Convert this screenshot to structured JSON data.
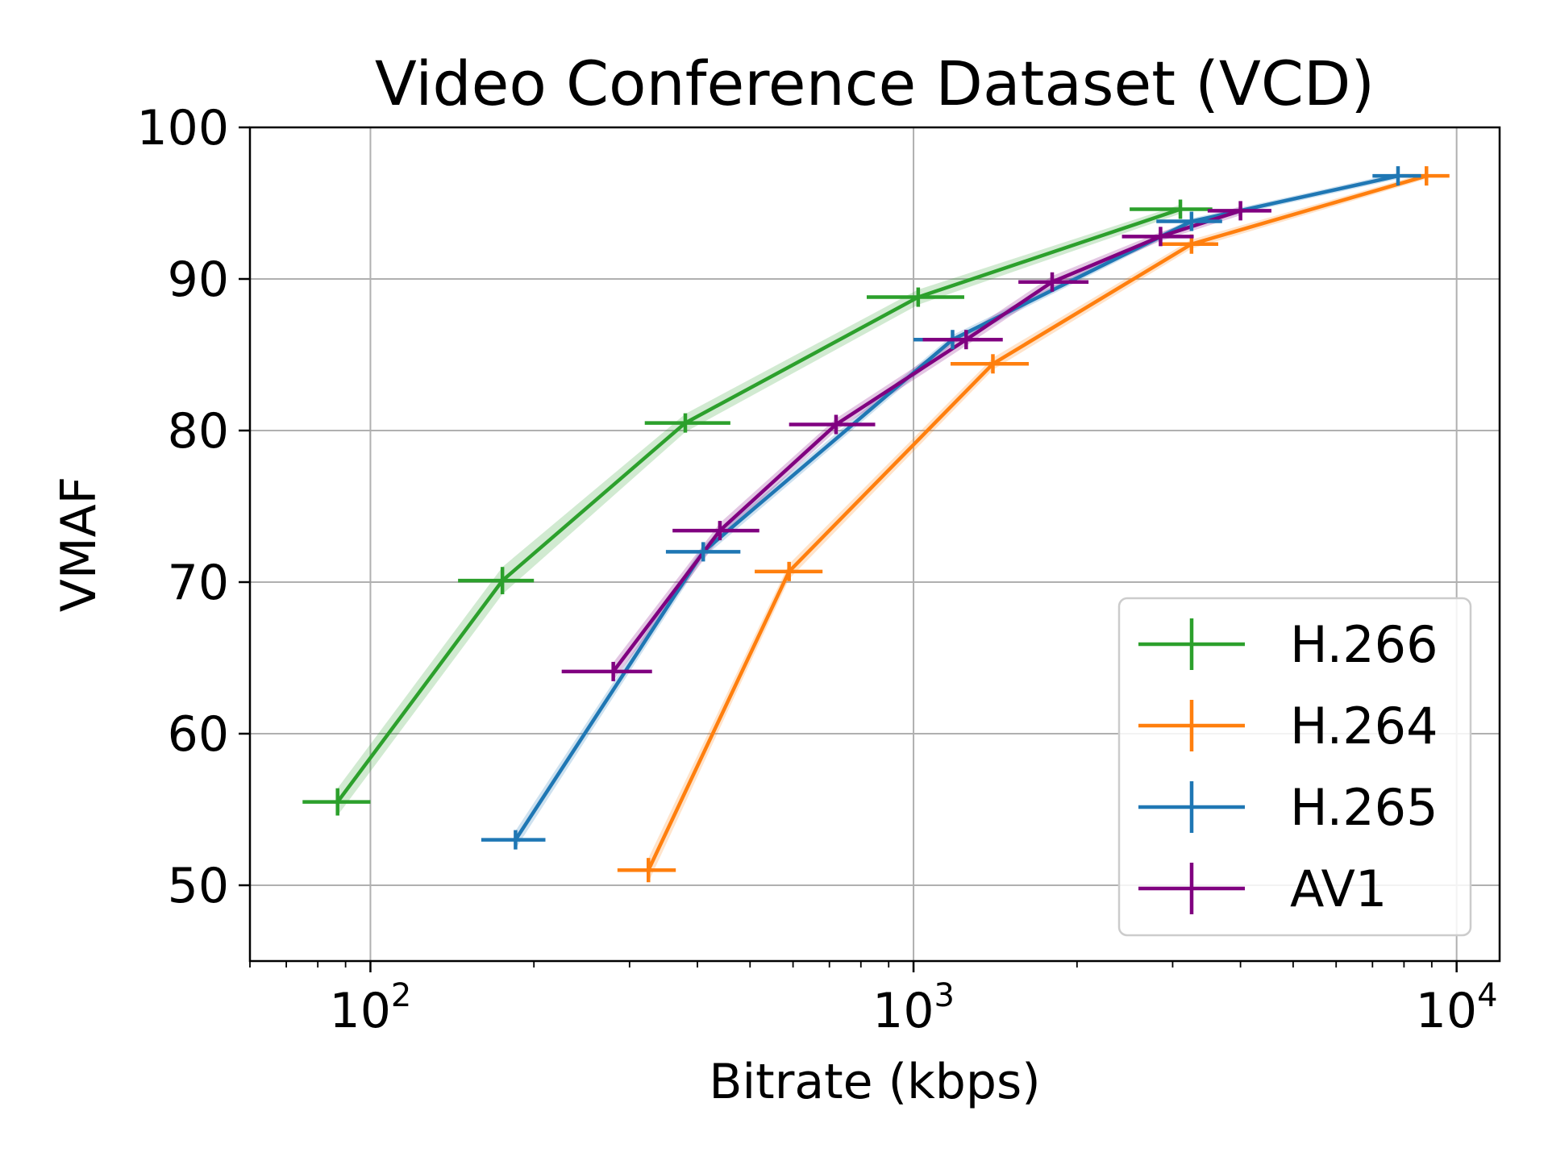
{
  "chart_data": {
    "type": "line",
    "title": "Video Conference Dataset (VCD)",
    "xlabel": "Bitrate (kbps)",
    "ylabel": "VMAF",
    "xscale": "log",
    "xlim": [
      60,
      12000
    ],
    "ylim": [
      45,
      100
    ],
    "x_ticks": [
      {
        "value": 100,
        "base": "10",
        "exp": "2"
      },
      {
        "value": 1000,
        "base": "10",
        "exp": "3"
      },
      {
        "value": 10000,
        "base": "10",
        "exp": "4"
      }
    ],
    "y_ticks": [
      {
        "value": 50,
        "label": "50"
      },
      {
        "value": 60,
        "label": "60"
      },
      {
        "value": 70,
        "label": "70"
      },
      {
        "value": 80,
        "label": "80"
      },
      {
        "value": 90,
        "label": "90"
      },
      {
        "value": 100,
        "label": "100"
      }
    ],
    "grid": true,
    "legend_position": "bottom-right",
    "series": [
      {
        "name": "H.266",
        "color": "#2ca02c",
        "points": [
          {
            "x": 87,
            "y": 55.5,
            "xerr": [
              75,
              100
            ],
            "yerr": 0.9
          },
          {
            "x": 175,
            "y": 70.1,
            "xerr": [
              145,
              200
            ],
            "yerr": 0.9
          },
          {
            "x": 380,
            "y": 80.5,
            "xerr": [
              320,
              460
            ],
            "yerr": 0.6
          },
          {
            "x": 1020,
            "y": 88.8,
            "xerr": [
              820,
              1240
            ],
            "yerr": 0.5
          },
          {
            "x": 3100,
            "y": 94.6,
            "xerr": [
              2500,
              3550
            ],
            "yerr": 0.3
          }
        ]
      },
      {
        "name": "H.264",
        "color": "#ff7f0e",
        "points": [
          {
            "x": 325,
            "y": 51.0,
            "xerr": [
              285,
              365
            ],
            "yerr": 0.8
          },
          {
            "x": 590,
            "y": 70.7,
            "xerr": [
              510,
              680
            ],
            "yerr": 0.5
          },
          {
            "x": 1400,
            "y": 84.4,
            "xerr": [
              1170,
              1630
            ],
            "yerr": 0.4
          },
          {
            "x": 3250,
            "y": 92.3,
            "xerr": [
              2860,
              3640
            ],
            "yerr": 0.3
          },
          {
            "x": 8800,
            "y": 96.8,
            "xerr": [
              7900,
              9700
            ],
            "yerr": 0.2
          }
        ]
      },
      {
        "name": "H.265",
        "color": "#1f77b4",
        "points": [
          {
            "x": 185,
            "y": 53.0,
            "xerr": [
              160,
              210
            ],
            "yerr": 0.6
          },
          {
            "x": 410,
            "y": 72.0,
            "xerr": [
              350,
              480
            ],
            "yerr": 0.4
          },
          {
            "x": 1180,
            "y": 86.0,
            "xerr": [
              1000,
              1360
            ],
            "yerr": 0.3
          },
          {
            "x": 3250,
            "y": 93.8,
            "xerr": [
              2800,
              3700
            ],
            "yerr": 0.2
          },
          {
            "x": 7800,
            "y": 96.8,
            "xerr": [
              7000,
              8600
            ],
            "yerr": 0.2
          }
        ]
      },
      {
        "name": "AV1",
        "color": "#800080",
        "points": [
          {
            "x": 280,
            "y": 64.1,
            "xerr": [
              225,
              330
            ],
            "yerr": 0.6
          },
          {
            "x": 440,
            "y": 73.4,
            "xerr": [
              360,
              520
            ],
            "yerr": 0.5
          },
          {
            "x": 720,
            "y": 80.4,
            "xerr": [
              590,
              850
            ],
            "yerr": 0.4
          },
          {
            "x": 1250,
            "y": 86.0,
            "xerr": [
              1040,
              1460
            ],
            "yerr": 0.4
          },
          {
            "x": 1800,
            "y": 89.8,
            "xerr": [
              1560,
              2100
            ],
            "yerr": 0.4
          },
          {
            "x": 2850,
            "y": 92.8,
            "xerr": [
              2420,
              3280
            ],
            "yerr": 0.3
          },
          {
            "x": 4000,
            "y": 94.5,
            "xerr": [
              3480,
              4560
            ],
            "yerr": 0.3
          }
        ]
      }
    ]
  }
}
